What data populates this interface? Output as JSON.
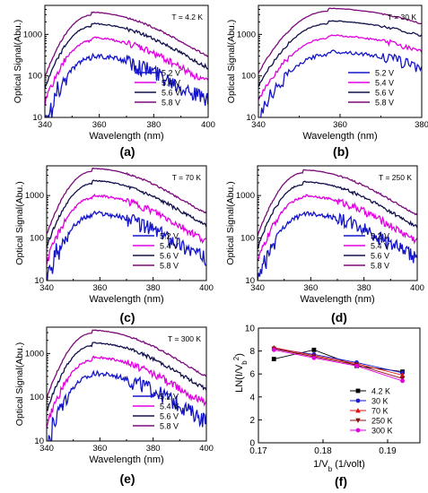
{
  "colors": {
    "5.2 V": "#1515c8",
    "5.4 V": "#e000e0",
    "5.6 V": "#10104a",
    "5.8 V": "#7a0a7a",
    "4.2 K": "#000000",
    "30 K": "#1a1ad0",
    "70 K": "#e01010",
    "250 K": "#8a1010",
    "300 K": "#e000e0"
  },
  "chart_data": [
    {
      "id": "a",
      "type": "line",
      "panel_label": "(a)",
      "annotation": "T = 4.2 K",
      "xlabel": "Wavelength (nm)",
      "ylabel": "Optical Signal(Abu.)",
      "y_scale": "log",
      "xlim": [
        340,
        400
      ],
      "ylim": [
        10,
        5000
      ],
      "xticks": [
        "340",
        "360",
        "380",
        "400"
      ],
      "yticks": [
        "10",
        "100",
        "1000"
      ],
      "legend_position": "bottom-right",
      "series": [
        {
          "name": "5.2 V",
          "peak": 260,
          "noise": 0.55
        },
        {
          "name": "5.4 V",
          "peak": 700,
          "noise": 0.25
        },
        {
          "name": "5.6 V",
          "peak": 1550,
          "noise": 0.12
        },
        {
          "name": "5.8 V",
          "peak": 2900,
          "noise": 0.06
        }
      ]
    },
    {
      "id": "b",
      "type": "line",
      "panel_label": "(b)",
      "annotation": "T = 30 K",
      "xlabel": "Wavelength (nm)",
      "ylabel": "Optical Signal(Abu.)",
      "y_scale": "log",
      "xlim": [
        340,
        380
      ],
      "ylim": [
        10,
        5000
      ],
      "xticks": [
        "340",
        "360",
        "380"
      ],
      "yticks": [
        "10",
        "100",
        "1000"
      ],
      "legend_position": "bottom-right",
      "series": [
        {
          "name": "5.2 V",
          "peak": 330,
          "noise": 0.4
        },
        {
          "name": "5.4 V",
          "peak": 800,
          "noise": 0.2
        },
        {
          "name": "5.6 V",
          "peak": 1800,
          "noise": 0.1
        },
        {
          "name": "5.8 V",
          "peak": 3600,
          "noise": 0.05
        }
      ]
    },
    {
      "id": "c",
      "type": "line",
      "panel_label": "(c)",
      "annotation": "T = 70 K",
      "xlabel": "Wavelength (nm)",
      "ylabel": "Optical Signal(Abu.)",
      "y_scale": "log",
      "xlim": [
        340,
        400
      ],
      "ylim": [
        10,
        5000
      ],
      "xticks": [
        "340",
        "360",
        "380",
        "400"
      ],
      "yticks": [
        "10",
        "100",
        "1000"
      ],
      "legend_position": "bottom-right",
      "series": [
        {
          "name": "5.2 V",
          "peak": 330,
          "noise": 0.5
        },
        {
          "name": "5.4 V",
          "peak": 850,
          "noise": 0.25
        },
        {
          "name": "5.6 V",
          "peak": 1900,
          "noise": 0.12
        },
        {
          "name": "5.8 V",
          "peak": 3700,
          "noise": 0.06
        }
      ]
    },
    {
      "id": "d",
      "type": "line",
      "panel_label": "(d)",
      "annotation": "T = 250 K",
      "xlabel": "Wavelength (nm)",
      "ylabel": "Optical Signal(Abu.)",
      "y_scale": "log",
      "xlim": [
        340,
        400
      ],
      "ylim": [
        10,
        5000
      ],
      "xticks": [
        "340",
        "360",
        "380",
        "400"
      ],
      "yticks": [
        "10",
        "100",
        "1000"
      ],
      "legend_position": "bottom-right",
      "series": [
        {
          "name": "5.2 V",
          "peak": 330,
          "noise": 0.5
        },
        {
          "name": "5.4 V",
          "peak": 850,
          "noise": 0.25
        },
        {
          "name": "5.6 V",
          "peak": 1800,
          "noise": 0.12
        },
        {
          "name": "5.8 V",
          "peak": 3400,
          "noise": 0.06
        }
      ]
    },
    {
      "id": "e",
      "type": "line",
      "panel_label": "(e)",
      "annotation": "T = 300 K",
      "xlabel": "Wavelength (nm)",
      "ylabel": "Optical Signal(Abu.)",
      "y_scale": "log",
      "xlim": [
        340,
        400
      ],
      "ylim": [
        10,
        4000
      ],
      "xticks": [
        "340",
        "360",
        "380",
        "400"
      ],
      "yticks": [
        "10",
        "100",
        "1000"
      ],
      "legend_position": "bottom-right",
      "series": [
        {
          "name": "5.2 V",
          "peak": 300,
          "noise": 0.5
        },
        {
          "name": "5.4 V",
          "peak": 700,
          "noise": 0.25
        },
        {
          "name": "5.6 V",
          "peak": 1500,
          "noise": 0.12
        },
        {
          "name": "5.8 V",
          "peak": 2900,
          "noise": 0.06
        }
      ]
    },
    {
      "id": "f",
      "type": "scatter",
      "panel_label": "(f)",
      "xlabel": "1/V_b (1/volt)",
      "ylabel": "LN(I/V_b^2)",
      "xlim": [
        0.17,
        0.195
      ],
      "ylim": [
        0,
        10
      ],
      "xticks": [
        "0.17",
        "0.18",
        "0.19"
      ],
      "yticks": [
        "0",
        "2",
        "4",
        "6",
        "8",
        "10"
      ],
      "legend_position": "bottom-right",
      "x": [
        0.1724,
        0.1786,
        0.1852,
        0.1923
      ],
      "series": [
        {
          "name": "4.2 K",
          "marker": "square",
          "values": [
            7.3,
            8.1,
            6.7,
            6.2
          ]
        },
        {
          "name": "30 K",
          "marker": "circle",
          "values": [
            8.2,
            7.7,
            7.0,
            6.1
          ]
        },
        {
          "name": "70 K",
          "marker": "triangle-up",
          "values": [
            8.3,
            7.6,
            6.9,
            5.9
          ]
        },
        {
          "name": "250 K",
          "marker": "triangle-down",
          "values": [
            8.2,
            7.5,
            6.8,
            5.6
          ]
        },
        {
          "name": "300 K",
          "marker": "circle",
          "values": [
            8.1,
            7.4,
            6.7,
            5.4
          ]
        }
      ]
    }
  ]
}
